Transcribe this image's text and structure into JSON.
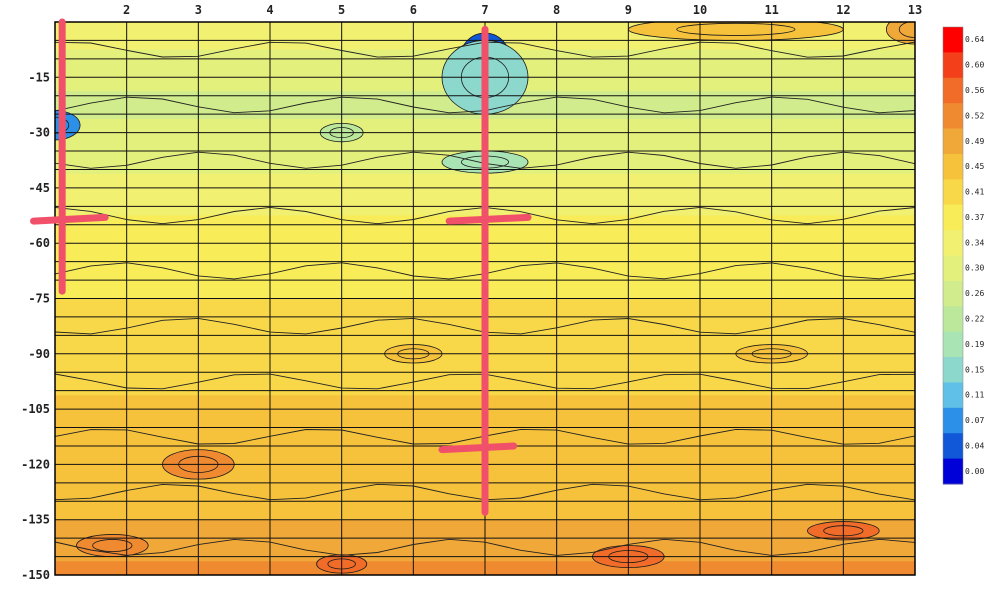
{
  "chart_data": {
    "type": "heatmap",
    "style": "filled-contour",
    "title": "",
    "xlabel": "",
    "ylabel": "",
    "x_ticks": [
      "2",
      "3",
      "4",
      "5",
      "6",
      "7",
      "8",
      "9",
      "10",
      "11",
      "12",
      "13"
    ],
    "y_ticks": [
      "-15",
      "-30",
      "-45",
      "-60",
      "-75",
      "-90",
      "-105",
      "-120",
      "-135",
      "-150"
    ],
    "xlim": [
      1,
      13
    ],
    "ylim": [
      -150,
      0
    ],
    "x_gridlines": [
      2,
      3,
      4,
      5,
      6,
      7,
      8,
      9,
      10,
      11,
      12,
      13
    ],
    "y_gridline_step": 5,
    "grid": true,
    "colorbar": {
      "position": "right",
      "labels": [
        "0.64",
        "0.60",
        "0.56",
        "0.52",
        "0.49",
        "0.45",
        "0.41",
        "0.37",
        "0.34",
        "0.30",
        "0.26",
        "0.22",
        "0.19",
        "0.15",
        "0.11",
        "0.07",
        "0.04",
        "0.00"
      ],
      "colors": [
        "#ff0000",
        "#f4401a",
        "#f06c28",
        "#f08a30",
        "#f0a838",
        "#f6c23c",
        "#f8d848",
        "#f8ec58",
        "#f2f070",
        "#e4f07c",
        "#d0ec8c",
        "#bce89c",
        "#a8e4b4",
        "#8cd8cc",
        "#60c0e8",
        "#2c90e8",
        "#1058d8",
        "#0000d8"
      ]
    },
    "row_values": [
      0.36,
      0.35,
      0.32,
      0.3,
      0.3,
      0.29,
      0.29,
      0.3,
      0.31,
      0.32,
      0.33,
      0.34,
      0.35,
      0.36,
      0.37,
      0.38,
      0.39,
      0.39,
      0.4,
      0.4,
      0.41,
      0.41,
      0.42,
      0.42,
      0.43,
      0.43,
      0.44,
      0.45,
      0.46,
      0.47,
      0.48,
      0.48,
      0.47,
      0.46,
      0.47,
      0.48,
      0.5,
      0.51,
      0.51,
      0.52
    ],
    "features": [
      {
        "name": "low-spot",
        "x": 7.0,
        "y": -10,
        "rx": 0.35,
        "ry": 7,
        "value": 0.06
      },
      {
        "name": "low-spot",
        "x": 7.0,
        "y": -15,
        "rx": 0.6,
        "ry": 10,
        "value": 0.15
      },
      {
        "name": "low-spot",
        "x": 1.0,
        "y": -28,
        "rx": 0.35,
        "ry": 4,
        "value": 0.1
      },
      {
        "name": "low-spot",
        "x": 7.0,
        "y": -38,
        "rx": 0.6,
        "ry": 3,
        "value": 0.2
      },
      {
        "name": "low-spot",
        "x": 5.0,
        "y": -30,
        "rx": 0.3,
        "ry": 2.5,
        "value": 0.24
      },
      {
        "name": "high-spot",
        "x": 9.0,
        "y": -145,
        "rx": 0.5,
        "ry": 3,
        "value": 0.58
      },
      {
        "name": "high-spot",
        "x": 12.0,
        "y": -138,
        "rx": 0.5,
        "ry": 2.5,
        "value": 0.58
      },
      {
        "name": "high-spot",
        "x": 5.0,
        "y": -147,
        "rx": 0.35,
        "ry": 2.5,
        "value": 0.56
      },
      {
        "name": "high-spot",
        "x": 1.8,
        "y": -142,
        "rx": 0.5,
        "ry": 3,
        "value": 0.55
      },
      {
        "name": "high-spot",
        "x": 3.0,
        "y": -120,
        "rx": 0.5,
        "ry": 4,
        "value": 0.53
      },
      {
        "name": "high-spot",
        "x": 13.0,
        "y": -2,
        "rx": 0.4,
        "ry": 4,
        "value": 0.5
      },
      {
        "name": "high-spot",
        "x": 10.5,
        "y": -2,
        "rx": 1.5,
        "ry": 3,
        "value": 0.45
      },
      {
        "name": "high-spot",
        "x": 6.0,
        "y": -90,
        "rx": 0.4,
        "ry": 2.5,
        "value": 0.46
      },
      {
        "name": "high-spot",
        "x": 11.0,
        "y": -90,
        "rx": 0.5,
        "ry": 2.5,
        "value": 0.46
      }
    ],
    "annotations": [
      {
        "name": "marker-left-vertical",
        "x1": 1.1,
        "y1": 0,
        "x2": 1.1,
        "y2": -73
      },
      {
        "name": "marker-left-crossbar",
        "x1": 0.7,
        "y1": -54,
        "x2": 1.7,
        "y2": -53
      },
      {
        "name": "marker-center-vertical",
        "x1": 7.0,
        "y1": -2,
        "x2": 7.0,
        "y2": -133
      },
      {
        "name": "marker-center-crossbar",
        "x1": 6.5,
        "y1": -54,
        "x2": 7.6,
        "y2": -53
      },
      {
        "name": "marker-center-lower-crossbar",
        "x1": 6.4,
        "y1": -116,
        "x2": 7.4,
        "y2": -115
      }
    ],
    "annotation_color": "#f0506a"
  }
}
